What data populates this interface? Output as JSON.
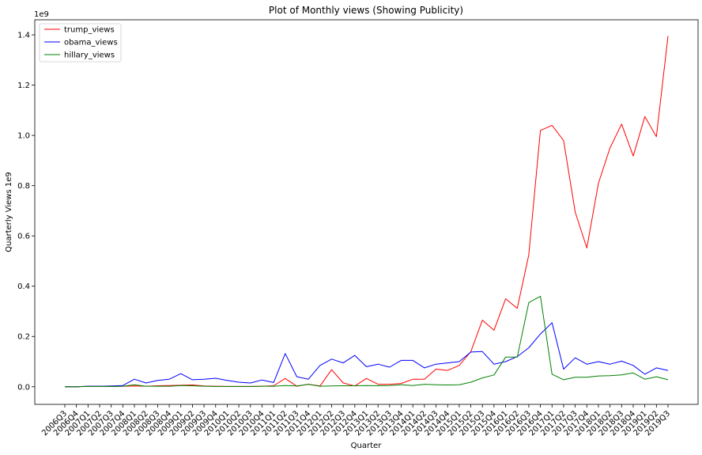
{
  "chart_data": {
    "type": "line",
    "title": "Plot of Monthly views (Showing Publicity)",
    "xlabel": "Quarter",
    "ylabel": "Quarterly Views 1e9",
    "scale_label": "1e9",
    "ylim": [
      -0.07,
      1.46
    ],
    "yticks": [
      0.0,
      0.2,
      0.4,
      0.6,
      0.8,
      1.0,
      1.2,
      1.4
    ],
    "ytick_labels": [
      "0.0",
      "0.2",
      "0.4",
      "0.6",
      "0.8",
      "1.0",
      "1.2",
      "1.4"
    ],
    "grid": false,
    "legend_position": "top-left",
    "categories": [
      "2006Q3",
      "2006Q4",
      "2007Q1",
      "2007Q2",
      "2007Q3",
      "2007Q4",
      "2008Q1",
      "2008Q2",
      "2008Q3",
      "2008Q4",
      "2009Q1",
      "2009Q2",
      "2009Q3",
      "2009Q4",
      "2010Q1",
      "2010Q2",
      "2010Q3",
      "2010Q4",
      "2011Q1",
      "2011Q2",
      "2011Q3",
      "2011Q4",
      "2012Q1",
      "2012Q2",
      "2012Q3",
      "2012Q4",
      "2013Q1",
      "2013Q2",
      "2013Q3",
      "2013Q4",
      "2014Q1",
      "2014Q2",
      "2014Q3",
      "2014Q4",
      "2015Q1",
      "2015Q2",
      "2015Q3",
      "2015Q4",
      "2016Q1",
      "2016Q2",
      "2016Q3",
      "2016Q4",
      "2017Q1",
      "2017Q2",
      "2017Q3",
      "2017Q4",
      "2018Q1",
      "2018Q2",
      "2018Q3",
      "2018Q4",
      "2019Q1",
      "2019Q2",
      "2019Q3"
    ],
    "series": [
      {
        "name": "trump_views",
        "color": "#ff0000",
        "values": [
          0.0,
          0.0,
          0.002,
          0.002,
          0.001,
          0.002,
          0.003,
          0.002,
          0.004,
          0.005,
          0.006,
          0.007,
          0.003,
          0.002,
          0.001,
          0.001,
          0.001,
          0.002,
          0.004,
          0.033,
          0.002,
          0.01,
          0.003,
          0.068,
          0.015,
          0.003,
          0.033,
          0.01,
          0.01,
          0.013,
          0.03,
          0.03,
          0.07,
          0.065,
          0.085,
          0.14,
          0.265,
          0.225,
          0.35,
          0.312,
          0.525,
          1.02,
          1.04,
          0.98,
          0.695,
          0.552,
          0.81,
          0.95,
          1.045,
          0.918,
          1.075,
          0.995,
          1.395
        ]
      },
      {
        "name": "obama_views",
        "color": "#0000ff",
        "values": [
          0.0,
          0.0,
          0.002,
          0.002,
          0.003,
          0.005,
          0.03,
          0.015,
          0.025,
          0.03,
          0.052,
          0.028,
          0.03,
          0.034,
          0.025,
          0.018,
          0.015,
          0.027,
          0.017,
          0.132,
          0.04,
          0.03,
          0.085,
          0.11,
          0.095,
          0.125,
          0.08,
          0.09,
          0.078,
          0.105,
          0.105,
          0.075,
          0.09,
          0.095,
          0.1,
          0.138,
          0.14,
          0.09,
          0.1,
          0.12,
          0.155,
          0.21,
          0.255,
          0.07,
          0.115,
          0.09,
          0.1,
          0.09,
          0.102,
          0.085,
          0.05,
          0.075,
          0.065
        ]
      },
      {
        "name": "hillary_views",
        "color": "#008000",
        "values": [
          0.0,
          0.0,
          0.001,
          0.001,
          0.001,
          0.002,
          0.008,
          0.002,
          0.002,
          0.002,
          0.005,
          0.004,
          0.002,
          0.001,
          0.001,
          0.001,
          0.001,
          0.002,
          0.002,
          0.005,
          0.003,
          0.01,
          0.002,
          0.003,
          0.004,
          0.004,
          0.005,
          0.004,
          0.005,
          0.008,
          0.005,
          0.01,
          0.008,
          0.007,
          0.008,
          0.018,
          0.035,
          0.047,
          0.118,
          0.118,
          0.335,
          0.36,
          0.05,
          0.028,
          0.038,
          0.038,
          0.043,
          0.044,
          0.047,
          0.055,
          0.03,
          0.04,
          0.028
        ]
      }
    ]
  }
}
